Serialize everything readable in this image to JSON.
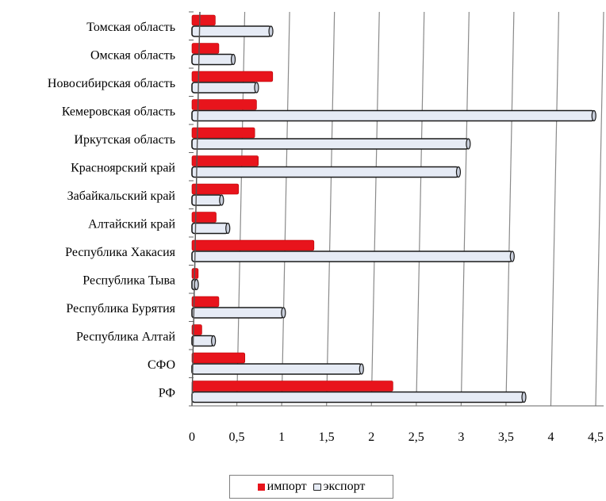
{
  "chart_data": {
    "type": "bar",
    "orientation": "horizontal",
    "categories": [
      "Томская область",
      "Омская область",
      "Новосибирская область",
      "Кемеровская область",
      "Иркутская область",
      "Красноярский край",
      "Забайкальский край",
      "Алтайский край",
      "Республика Хакасия",
      "Республика Тыва",
      "Республика Бурятия",
      "Республика Алтай",
      "СФО",
      "РФ"
    ],
    "series": [
      {
        "name": "импорт",
        "color": "#e8141c",
        "values": [
          0.26,
          0.3,
          0.9,
          0.72,
          0.7,
          0.74,
          0.52,
          0.27,
          1.36,
          0.07,
          0.3,
          0.11,
          0.59,
          2.24
        ]
      },
      {
        "name": "экспорт",
        "color": "#e6ebf5",
        "values": [
          0.88,
          0.46,
          0.72,
          4.48,
          3.08,
          2.97,
          0.33,
          0.4,
          3.57,
          0.05,
          1.02,
          0.24,
          1.89,
          3.7
        ]
      }
    ],
    "xlim": [
      0,
      4.5
    ],
    "xticks": [
      "0",
      "0,5",
      "1",
      "1,5",
      "2",
      "2,5",
      "3",
      "3,5",
      "4",
      "4,5"
    ],
    "grid": "vertical",
    "legend_position": "bottom"
  }
}
